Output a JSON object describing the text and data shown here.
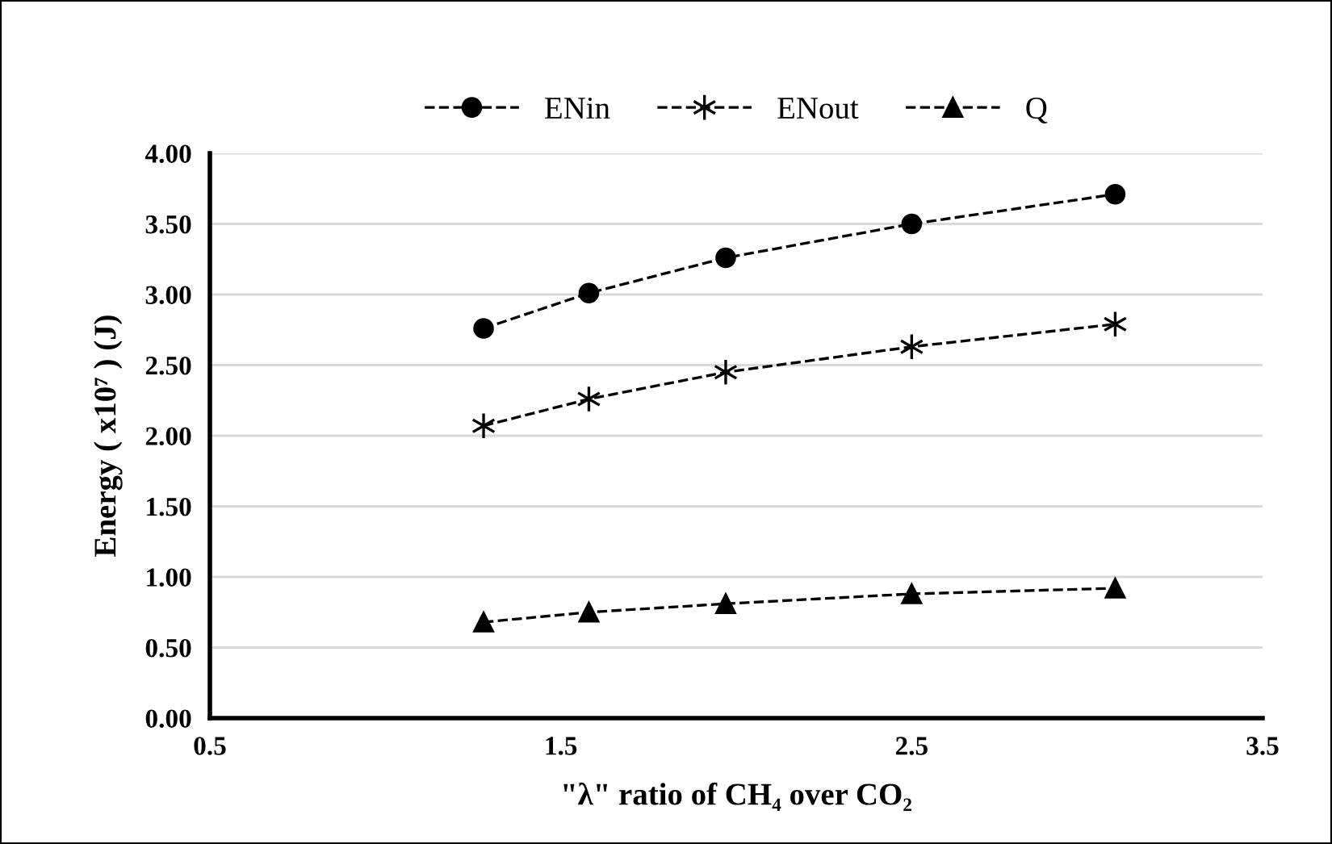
{
  "chart_data": {
    "type": "line",
    "xlabel": "\"λ\" ratio of CH₄ over CO₂",
    "ylabel": "Energy ( x10⁷ ) (J)",
    "x": [
      1.28,
      1.58,
      1.97,
      2.5,
      3.08
    ],
    "series": [
      {
        "name": "ENin",
        "color": "#000000",
        "marker": "circle",
        "values": [
          2.76,
          3.01,
          3.26,
          3.5,
          3.71
        ]
      },
      {
        "name": "ENout",
        "color": "#000000",
        "marker": "cross",
        "values": [
          2.07,
          2.26,
          2.45,
          2.63,
          2.79
        ]
      },
      {
        "name": "Q",
        "color": "#000000",
        "marker": "triangle",
        "values": [
          0.68,
          0.75,
          0.81,
          0.88,
          0.92
        ]
      }
    ],
    "xlim": [
      0.5,
      3.5
    ],
    "xticks": [
      0.5,
      1.5,
      2.5,
      3.5
    ],
    "ylim": [
      0,
      4
    ],
    "yticks": [
      {
        "value": 0,
        "label": "0.00"
      },
      {
        "value": 0.5,
        "label": "0.50"
      },
      {
        "value": 1,
        "label": "1.00"
      },
      {
        "value": 1.5,
        "label": "1.50"
      },
      {
        "value": 2,
        "label": "2.00"
      },
      {
        "value": 2.5,
        "label": "2.50"
      },
      {
        "value": 3,
        "label": "3.00"
      },
      {
        "value": 3.5,
        "label": "3.50"
      },
      {
        "value": 4,
        "label": "4.00"
      }
    ],
    "grid": "y",
    "legend": "top",
    "line_style": "dashed"
  }
}
